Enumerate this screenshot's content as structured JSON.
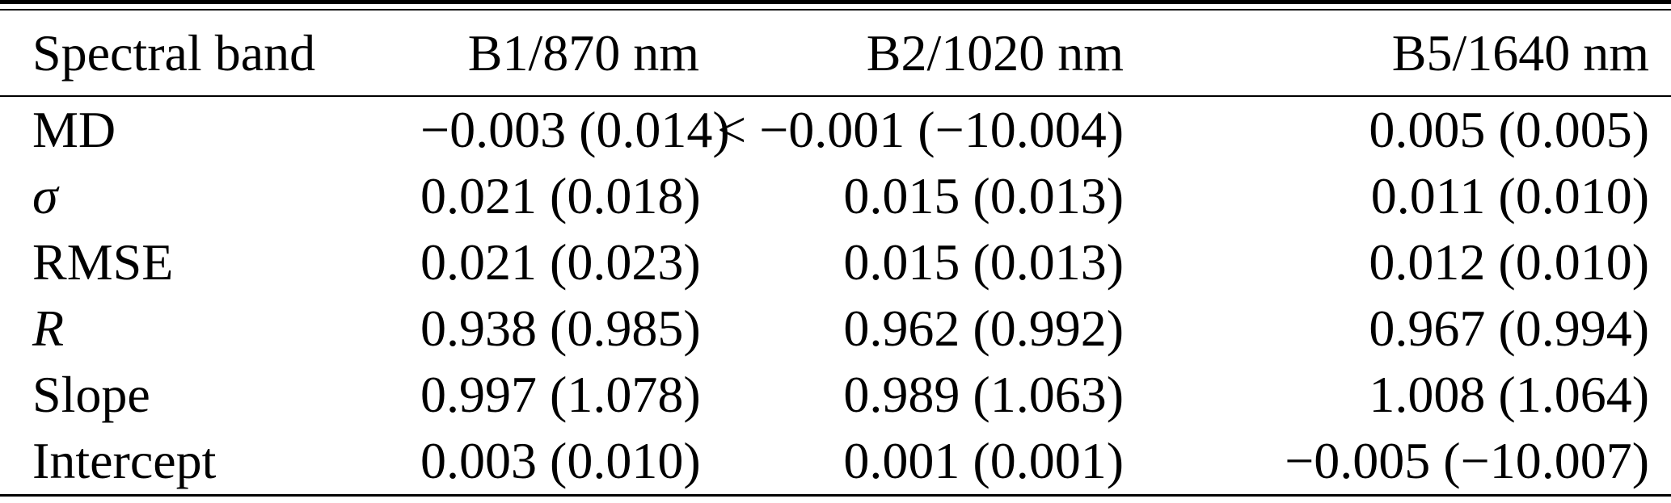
{
  "page": {
    "background": "#ffffff",
    "text_color": "#000000",
    "rule_color": "#000000"
  },
  "table": {
    "columns": [
      {
        "label": "Spectral band",
        "align": "left"
      },
      {
        "label": "B1/870 nm",
        "align": "right"
      },
      {
        "label": "B2/1020 nm",
        "align": "right"
      },
      {
        "label": "B5/1640 nm",
        "align": "right"
      }
    ],
    "rows": [
      {
        "label": "MD",
        "label_italic": false,
        "values": [
          "−0.003 (0.014)",
          "< −0.001 (−10.004)",
          "0.005 (0.005)"
        ]
      },
      {
        "label": "σ",
        "label_italic": true,
        "values": [
          "0.021 (0.018)",
          "0.015 (0.013)",
          "0.011 (0.010)"
        ]
      },
      {
        "label": "RMSE",
        "label_italic": false,
        "values": [
          "0.021 (0.023)",
          "0.015 (0.013)",
          "0.012 (0.010)"
        ]
      },
      {
        "label": "R",
        "label_italic": true,
        "values": [
          "0.938 (0.985)",
          "0.962 (0.992)",
          "0.967 (0.994)"
        ]
      },
      {
        "label": "Slope",
        "label_italic": false,
        "values": [
          "0.997 (1.078)",
          "0.989 (1.063)",
          "1.008 (1.064)"
        ]
      },
      {
        "label": "Intercept",
        "label_italic": false,
        "values": [
          "0.003 (0.010)",
          "0.001 (0.001)",
          "−0.005 (−10.007)"
        ]
      }
    ]
  }
}
